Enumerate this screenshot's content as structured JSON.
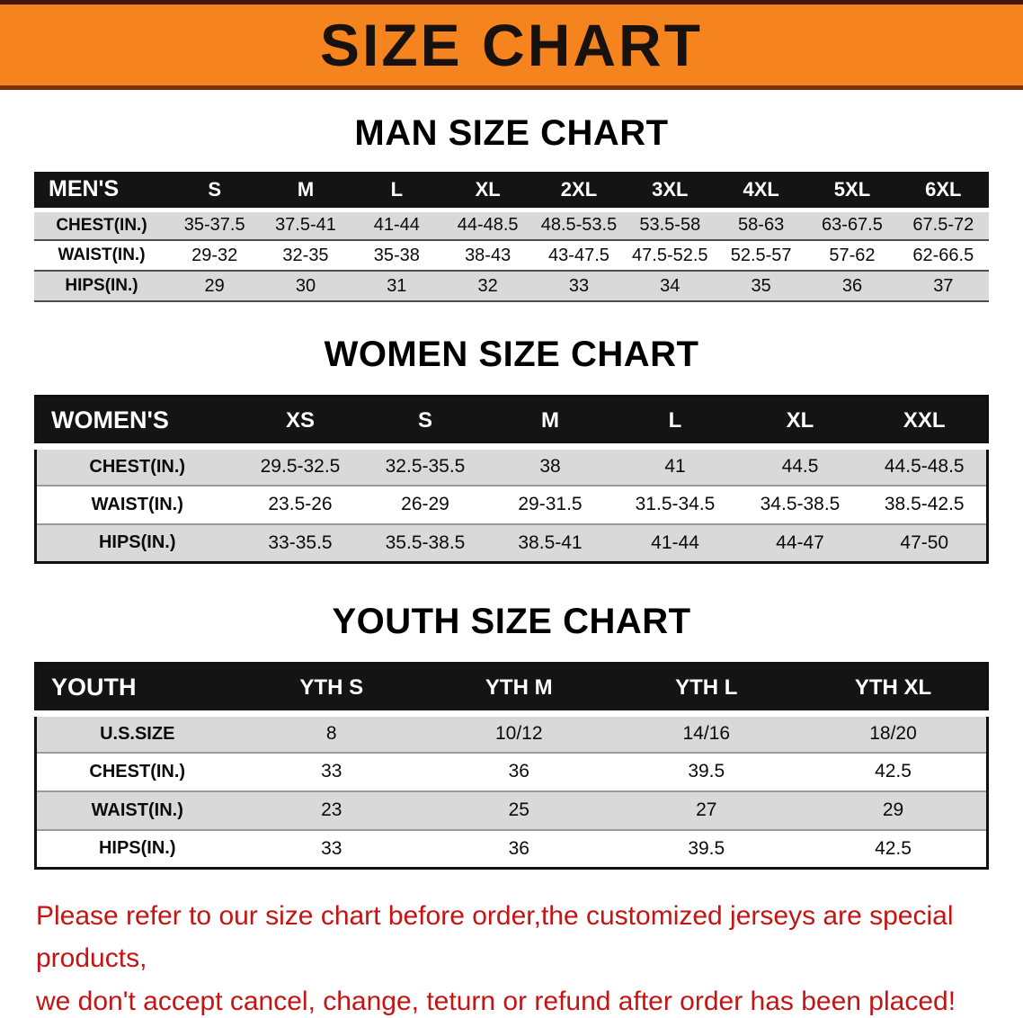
{
  "banner": {
    "title": "SIZE CHART"
  },
  "colors": {
    "banner_bg": "#F6841E",
    "table_header_bg": "#141414",
    "row_alt_gray": "#D9D9D9",
    "disclaimer_red": "#C41414"
  },
  "sections": [
    {
      "id": "men",
      "heading": "MAN SIZE CHART",
      "table": {
        "header": [
          "MEN'S",
          "S",
          "M",
          "L",
          "XL",
          "2XL",
          "3XL",
          "4XL",
          "5XL",
          "6XL"
        ],
        "rows": [
          [
            "CHEST(IN.)",
            "35-37.5",
            "37.5-41",
            "41-44",
            "44-48.5",
            "48.5-53.5",
            "53.5-58",
            "58-63",
            "63-67.5",
            "67.5-72"
          ],
          [
            "WAIST(IN.)",
            "29-32",
            "32-35",
            "35-38",
            "38-43",
            "43-47.5",
            "47.5-52.5",
            "52.5-57",
            "57-62",
            "62-66.5"
          ],
          [
            "HIPS(IN.)",
            "29",
            "30",
            "31",
            "32",
            "33",
            "34",
            "35",
            "36",
            "37"
          ]
        ]
      }
    },
    {
      "id": "women",
      "heading": "WOMEN SIZE CHART",
      "table": {
        "header": [
          "WOMEN'S",
          "XS",
          "S",
          "M",
          "L",
          "XL",
          "XXL"
        ],
        "rows": [
          [
            "CHEST(IN.)",
            "29.5-32.5",
            "32.5-35.5",
            "38",
            "41",
            "44.5",
            "44.5-48.5"
          ],
          [
            "WAIST(IN.)",
            "23.5-26",
            "26-29",
            "29-31.5",
            "31.5-34.5",
            "34.5-38.5",
            "38.5-42.5"
          ],
          [
            "HIPS(IN.)",
            "33-35.5",
            "35.5-38.5",
            "38.5-41",
            "41-44",
            "44-47",
            "47-50"
          ]
        ]
      }
    },
    {
      "id": "youth",
      "heading": "YOUTH SIZE CHART",
      "table": {
        "header": [
          "YOUTH",
          "YTH S",
          "YTH M",
          "YTH L",
          "YTH XL"
        ],
        "rows": [
          [
            "U.S.SIZE",
            "8",
            "10/12",
            "14/16",
            "18/20"
          ],
          [
            "CHEST(IN.)",
            "33",
            "36",
            "39.5",
            "42.5"
          ],
          [
            "WAIST(IN.)",
            "23",
            "25",
            "27",
            "29"
          ],
          [
            "HIPS(IN.)",
            "33",
            "36",
            "39.5",
            "42.5"
          ]
        ]
      }
    }
  ],
  "disclaimer": {
    "line1": "Please refer to our size chart before order,the customized jerseys are special products,",
    "line2": "we don't accept cancel, change, teturn or refund after order has been placed!"
  }
}
